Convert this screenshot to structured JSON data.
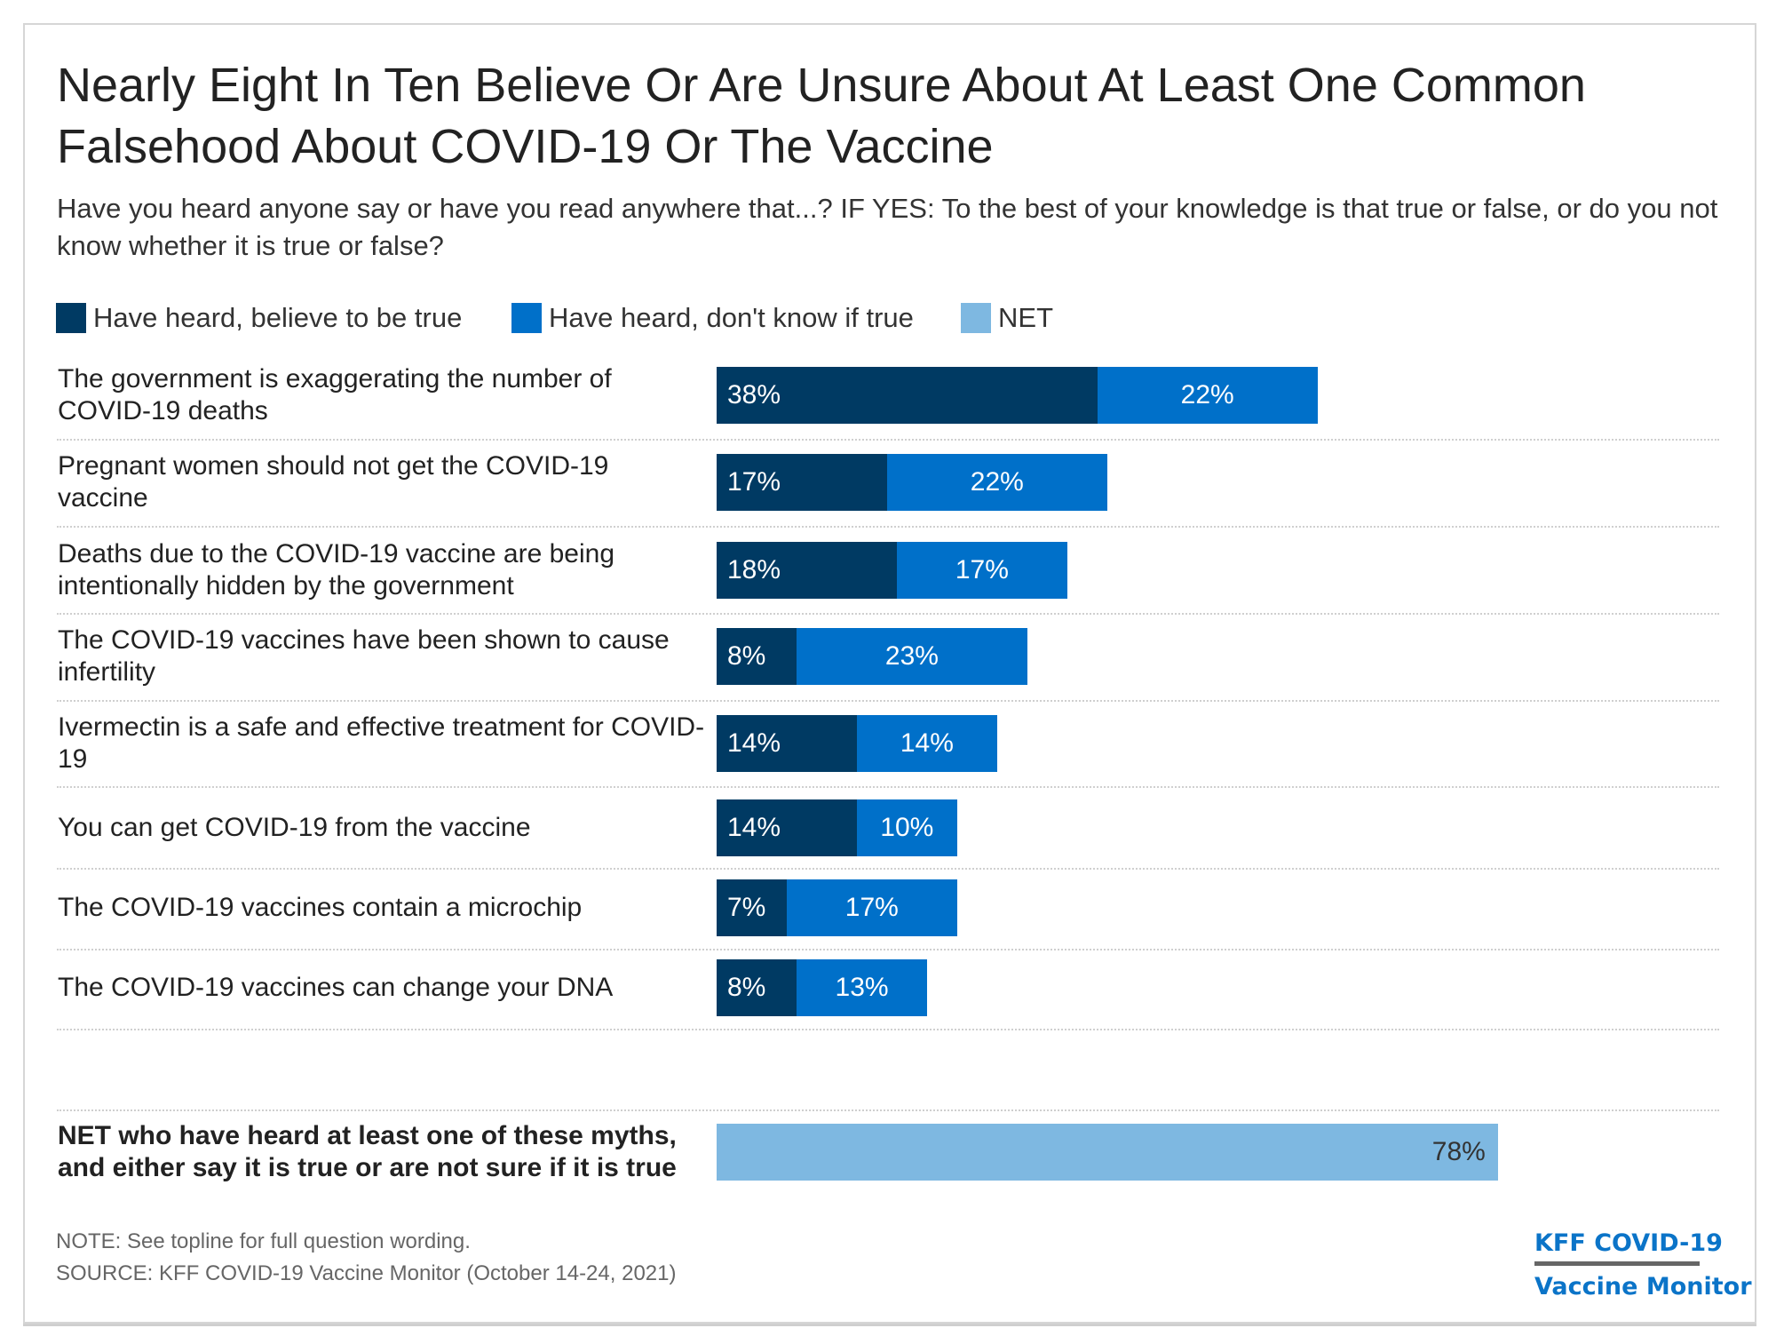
{
  "title": "Nearly Eight In Ten Believe Or Are Unsure About At Least One Common Falsehood About COVID-19 Or The Vaccine",
  "subtitle": "Have you heard anyone say or have you read anywhere that...? IF YES: To the best of your knowledge is that true or false, or do you not know whether it is true or false?",
  "colors": {
    "believe": "#003a63",
    "dont_know": "#0070c9",
    "net": "#7eb8e1"
  },
  "chart_data": {
    "type": "bar",
    "orientation": "horizontal",
    "stacked": true,
    "legend": [
      "Have heard, believe to be true",
      "Have heard, don't know if true",
      "NET"
    ],
    "legend_position": "top-left",
    "categories": [
      "The government is exaggerating the number of COVID-19 deaths",
      "Pregnant women should not get the COVID-19 vaccine",
      "Deaths due to the COVID-19 vaccine are being intentionally hidden by the government",
      "The COVID-19 vaccines have been shown to cause infertility",
      "Ivermectin is a safe and effective treatment for COVID-19",
      "You can get COVID-19 from the vaccine",
      "The COVID-19 vaccines contain a microchip",
      "The COVID-19 vaccines can change your DNA"
    ],
    "series": [
      {
        "name": "Have heard, believe to be true",
        "values": [
          38,
          17,
          18,
          8,
          14,
          14,
          7,
          8
        ]
      },
      {
        "name": "Have heard, don't know if true",
        "values": [
          22,
          22,
          17,
          23,
          14,
          10,
          17,
          13
        ]
      }
    ],
    "net": {
      "label": "NET who have heard at least one of these myths, and either say it is true or are not sure if it is true",
      "value": 78
    },
    "unit": "%",
    "grid": false
  },
  "footer": {
    "note": "NOTE: See topline for full question wording.",
    "source": "SOURCE: KFF COVID-19 Vaccine Monitor (October 14-24, 2021)",
    "logo_line1": "KFF COVID-19",
    "logo_line2": "Vaccine Monitor"
  }
}
